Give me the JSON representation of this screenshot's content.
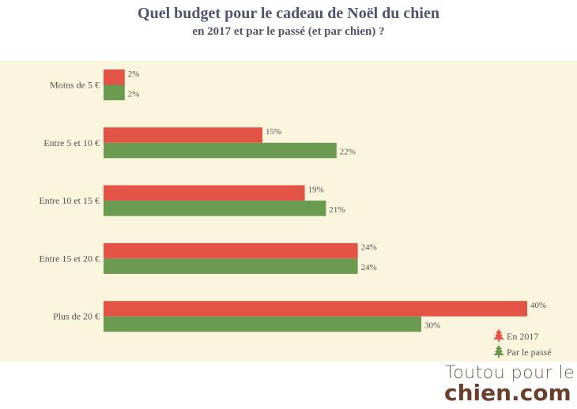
{
  "chart_data": {
    "type": "bar",
    "orientation": "horizontal",
    "title": "Quel budget pour le cadeau de Noël du chien",
    "subtitle": "en 2017 et par le passé (et par chien) ?",
    "categories": [
      "Moins de 5 €",
      "Entre 5 et 10 €",
      "Entre 10 et 15 €",
      "Entre 15 et 20 €",
      "Plus de 20 €"
    ],
    "series": [
      {
        "name": "En 2017",
        "color": "#e35446",
        "values": [
          2,
          15,
          19,
          24,
          40
        ]
      },
      {
        "name": "Par le passé",
        "color": "#6b9a51",
        "values": [
          2,
          22,
          21,
          24,
          30
        ]
      }
    ],
    "value_suffix": "%",
    "xlim": [
      0,
      40
    ],
    "grid": false,
    "legend_position": "bottom-right",
    "legend_icon": "christmas-tree-icon",
    "background": "#faf5dc"
  },
  "logo": {
    "line1": "Toutou pour le",
    "line2": "chien.com"
  }
}
